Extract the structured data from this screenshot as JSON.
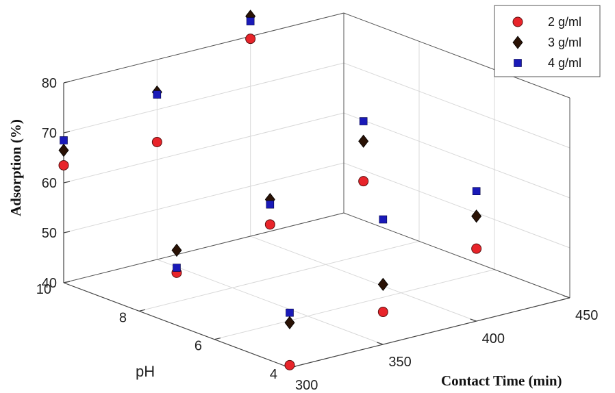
{
  "chart_data": {
    "type": "scatter3d",
    "zlabel": "Adsorption (%)",
    "ylabel": "pH",
    "xlabel": "Contact Time (min)",
    "x_ticks": [
      "300",
      "350",
      "400",
      "450"
    ],
    "y_ticks": [
      "4",
      "6",
      "8",
      "10"
    ],
    "z_ticks": [
      "40",
      "50",
      "60",
      "70",
      "80"
    ],
    "xlim": [
      300,
      450
    ],
    "ylim": [
      4,
      10
    ],
    "zlim": [
      40,
      80
    ],
    "legend_position": "top-right",
    "series": [
      {
        "name": "2  g/ml",
        "marker": "circle",
        "color": "#e8242a",
        "points": [
          {
            "x": 300,
            "y": 10,
            "z": 63.5
          },
          {
            "x": 300,
            "y": 7,
            "z": 50.5
          },
          {
            "x": 300,
            "y": 4,
            "z": 40.5
          },
          {
            "x": 350,
            "y": 10,
            "z": 63.5
          },
          {
            "x": 350,
            "y": 7,
            "z": 55.5
          },
          {
            "x": 350,
            "y": 4,
            "z": 46.5
          },
          {
            "x": 400,
            "y": 10,
            "z": 79.5
          },
          {
            "x": 400,
            "y": 7,
            "z": 59.5
          },
          {
            "x": 400,
            "y": 4,
            "z": 54.5
          }
        ]
      },
      {
        "name": "3 g/ml",
        "marker": "diamond",
        "color": "#2a1205",
        "points": [
          {
            "x": 300,
            "y": 10,
            "z": 66.5
          },
          {
            "x": 300,
            "y": 7,
            "z": 55
          },
          {
            "x": 300,
            "y": 4,
            "z": 49
          },
          {
            "x": 350,
            "y": 10,
            "z": 73.5
          },
          {
            "x": 350,
            "y": 7,
            "z": 60.5
          },
          {
            "x": 350,
            "y": 4,
            "z": 52
          },
          {
            "x": 400,
            "y": 10,
            "z": 84
          },
          {
            "x": 400,
            "y": 7,
            "z": 67.5
          },
          {
            "x": 400,
            "y": 4,
            "z": 61
          }
        ]
      },
      {
        "name": "4 g/ml",
        "marker": "square",
        "color": "#1a1ab8",
        "points": [
          {
            "x": 300,
            "y": 10,
            "z": 68.5
          },
          {
            "x": 300,
            "y": 7,
            "z": 51.5
          },
          {
            "x": 300,
            "y": 4,
            "z": 51
          },
          {
            "x": 350,
            "y": 10,
            "z": 73
          },
          {
            "x": 350,
            "y": 7,
            "z": 59.5
          },
          {
            "x": 350,
            "y": 4,
            "z": 65
          },
          {
            "x": 400,
            "y": 10,
            "z": 83
          },
          {
            "x": 400,
            "y": 7,
            "z": 71.5
          },
          {
            "x": 400,
            "y": 4,
            "z": 66
          }
        ]
      }
    ]
  }
}
